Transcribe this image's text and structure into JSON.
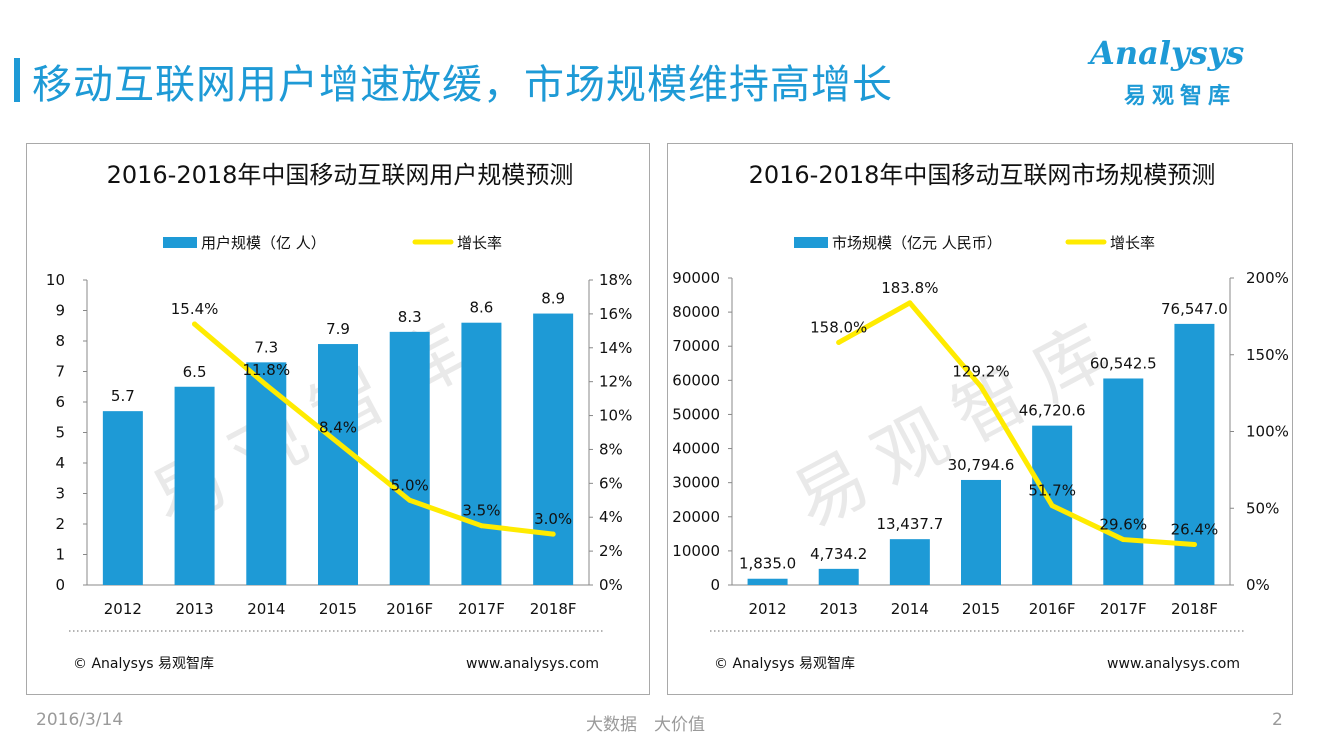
{
  "header": {
    "title": "移动互联网用户增速放缓，市场规模维持高增长",
    "logo_text": "Analysys",
    "logo_cn": "易观智库"
  },
  "colors": {
    "bar": "#1e9ad6",
    "line": "#ffeb00",
    "title": "#1e9ad6",
    "watermark": "#e6e6e6"
  },
  "footer": {
    "date": "2016/3/14",
    "slogan": "大数据　大价值",
    "page": "2"
  },
  "chart_data": [
    {
      "type": "bar",
      "title": "2016-2018年中国移动互联网用户规模预测",
      "categories": [
        "2012",
        "2013",
        "2014",
        "2015",
        "2016F",
        "2017F",
        "2018F"
      ],
      "series": [
        {
          "name": "用户规模（亿 人）",
          "values": [
            5.7,
            6.5,
            7.3,
            7.9,
            8.3,
            8.6,
            8.9
          ],
          "labels": [
            "5.7",
            "6.5",
            "7.3",
            "7.9",
            "8.3",
            "8.6",
            "8.9"
          ]
        },
        {
          "name": "增长率",
          "type": "line",
          "axis": "right",
          "values": [
            null,
            15.4,
            11.8,
            8.4,
            5.0,
            3.5,
            3.0
          ],
          "labels": [
            "",
            "15.4%",
            "11.8%",
            "8.4%",
            "5.0%",
            "3.5%",
            "3.0%"
          ]
        }
      ],
      "ylim": [
        0,
        10
      ],
      "yticks": [
        "0",
        "1",
        "2",
        "3",
        "4",
        "5",
        "6",
        "7",
        "8",
        "9",
        "10"
      ],
      "y2lim": [
        0,
        18
      ],
      "y2ticks": [
        "0%",
        "2%",
        "4%",
        "6%",
        "8%",
        "10%",
        "12%",
        "14%",
        "16%",
        "18%"
      ],
      "legend_position": "top",
      "watermark": "易观智库",
      "source": "© Analysys 易观智库",
      "url": "www.analysys.com"
    },
    {
      "type": "bar",
      "title": "2016-2018年中国移动互联网市场规模预测",
      "categories": [
        "2012",
        "2013",
        "2014",
        "2015",
        "2016F",
        "2017F",
        "2018F"
      ],
      "series": [
        {
          "name": "市场规模（亿元 人民币）",
          "values": [
            1835.0,
            4734.2,
            13437.7,
            30794.6,
            46720.6,
            60542.5,
            76547.0
          ],
          "labels": [
            "1,835.0",
            "4,734.2",
            "13,437.7",
            "30,794.6",
            "46,720.6",
            "60,542.5",
            "76,547.0"
          ]
        },
        {
          "name": "增长率",
          "type": "line",
          "axis": "right",
          "values": [
            null,
            158.0,
            183.8,
            129.2,
            51.7,
            29.6,
            26.4
          ],
          "labels": [
            "",
            "158.0%",
            "183.8%",
            "129.2%",
            "51.7%",
            "29.6%",
            "26.4%"
          ]
        }
      ],
      "ylim": [
        0,
        90000
      ],
      "yticks": [
        "0",
        "10000",
        "20000",
        "30000",
        "40000",
        "50000",
        "60000",
        "70000",
        "80000",
        "90000"
      ],
      "y2lim": [
        0,
        200
      ],
      "y2ticks": [
        "0%",
        "50%",
        "100%",
        "150%",
        "200%"
      ],
      "legend_position": "top",
      "watermark": "易观智库",
      "source": "© Analysys 易观智库",
      "url": "www.analysys.com"
    }
  ]
}
